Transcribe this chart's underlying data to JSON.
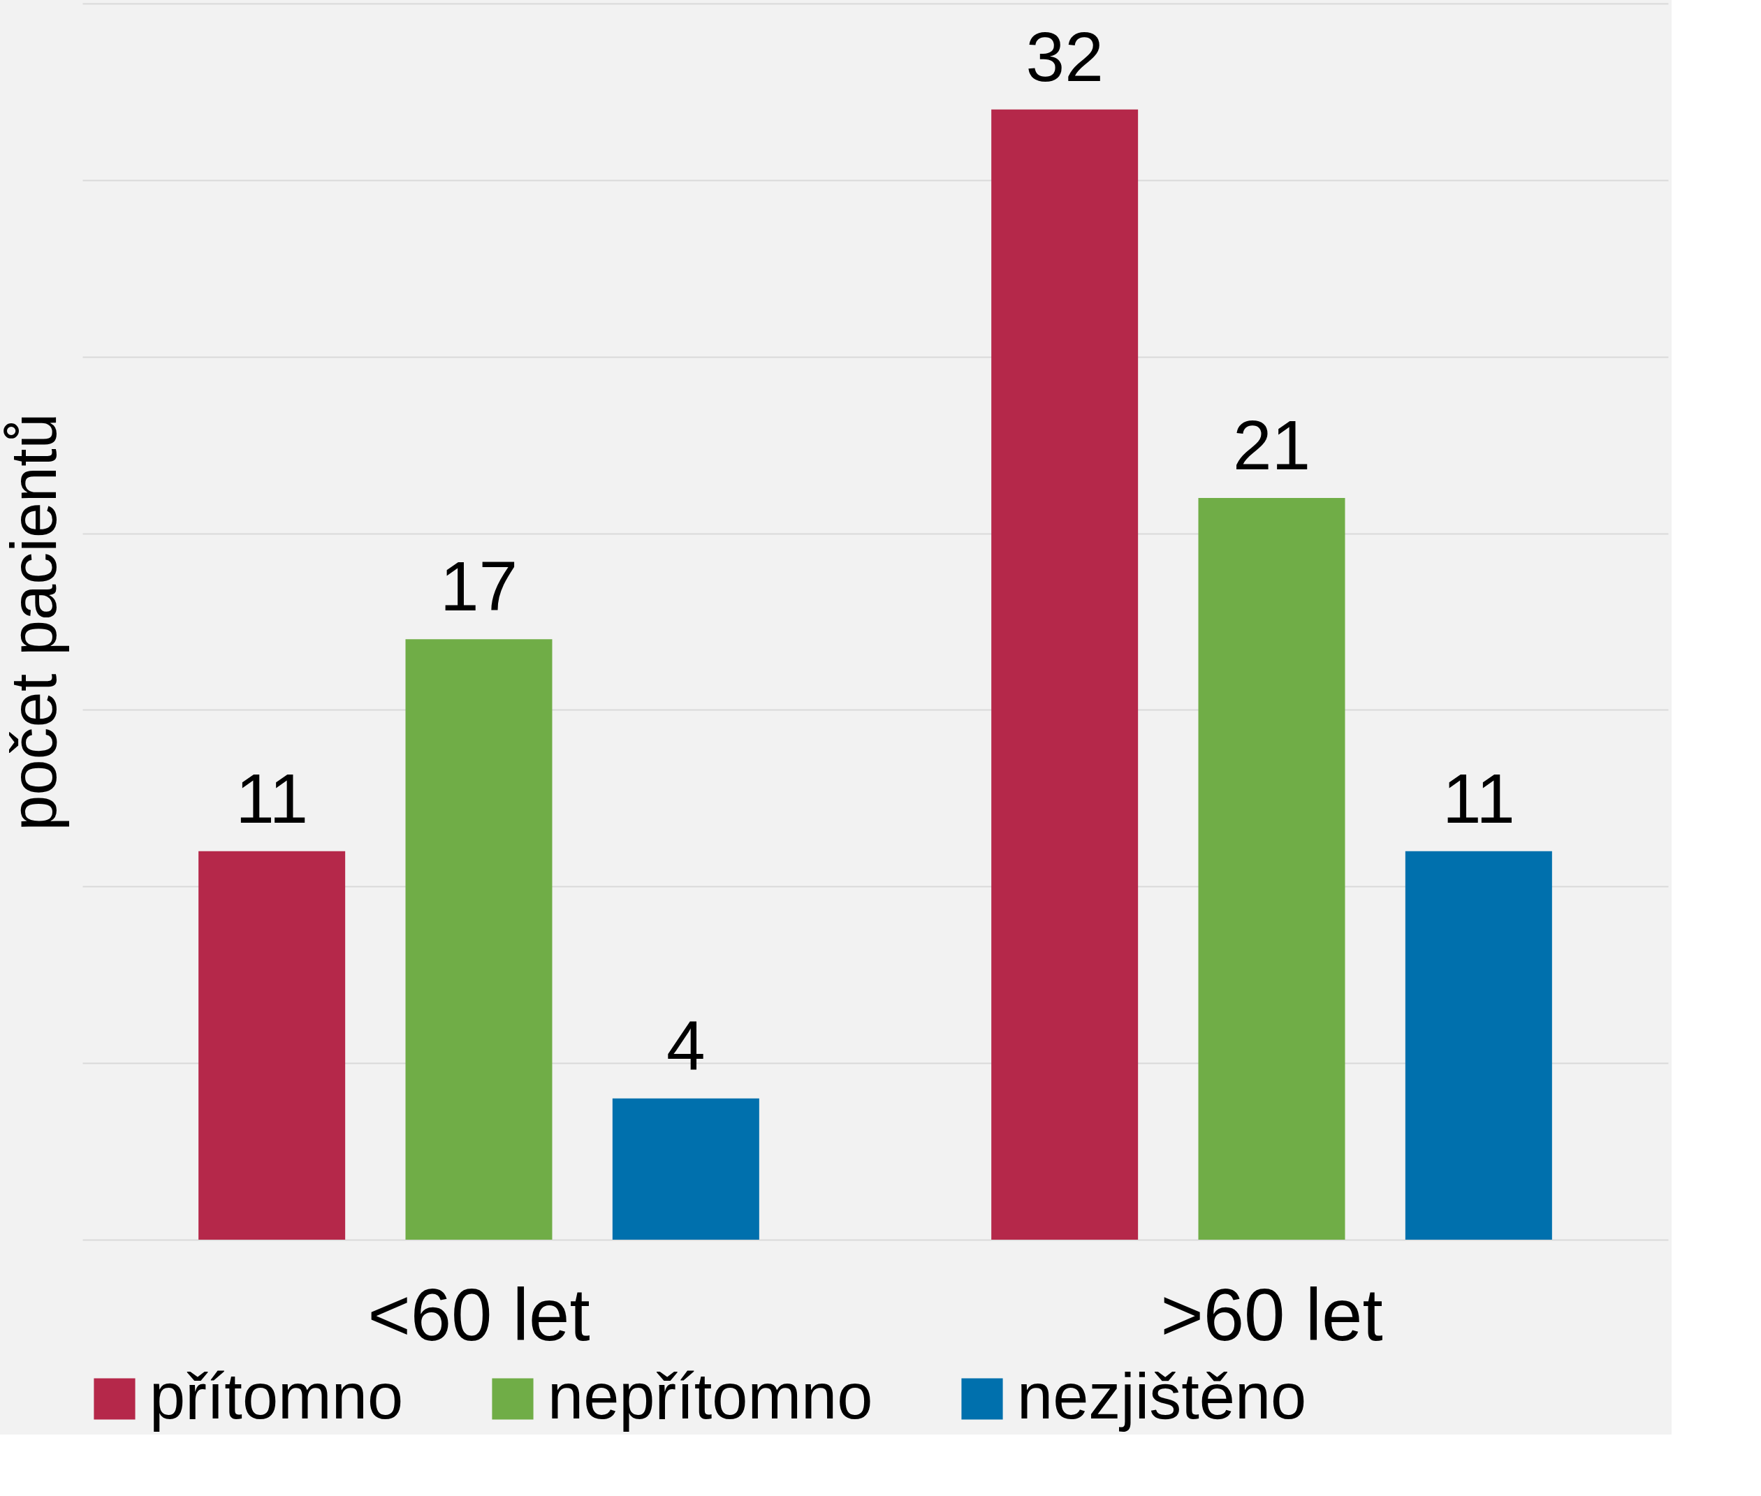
{
  "chart_data": {
    "type": "bar",
    "ylabel": "počet pacientů",
    "categories": [
      "<60 let",
      ">60 let"
    ],
    "series": [
      {
        "name": "přítomno",
        "color": "#b5284a",
        "values": [
          11,
          32
        ]
      },
      {
        "name": "nepřítomno",
        "color": "#70ad47",
        "values": [
          17,
          21
        ]
      },
      {
        "name": "nezjištěno",
        "color": "#0070ad",
        "values": [
          4,
          11
        ]
      }
    ],
    "ylim": [
      0,
      35
    ],
    "yticks": [
      {
        "value": 0,
        "label": null
      },
      {
        "value": 5,
        "label": null
      },
      {
        "value": 10,
        "label": null
      },
      {
        "value": 15,
        "label": null
      },
      {
        "value": 20,
        "label": null
      },
      {
        "value": 25,
        "label": null
      },
      {
        "value": 30,
        "label": null
      },
      {
        "value": 35,
        "label": null
      }
    ],
    "tick_labels": "x",
    "grid": "y",
    "legend": "bottom",
    "data_labels": true
  }
}
